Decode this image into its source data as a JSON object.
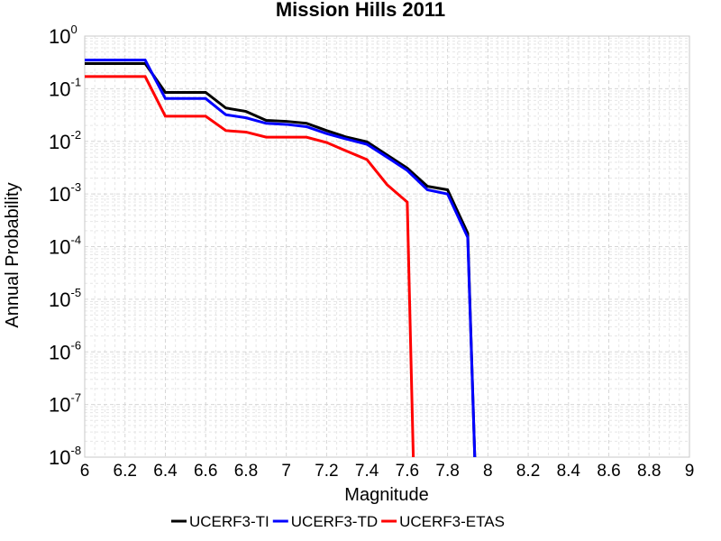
{
  "chart_data": {
    "type": "line",
    "title": "Mission Hills 2011",
    "xlabel": "Magnitude",
    "ylabel": "Annual Probability",
    "xlim": [
      6,
      9
    ],
    "ylim": [
      1e-08,
      1
    ],
    "yscale": "log",
    "grid": true,
    "legend_position": "bottom",
    "x_ticks": [
      "6",
      "6.2",
      "6.4",
      "6.6",
      "6.8",
      "7",
      "7.2",
      "7.4",
      "7.6",
      "7.8",
      "8",
      "8.2",
      "8.4",
      "8.6",
      "8.8",
      "9"
    ],
    "y_tick_base": "10",
    "y_tick_exponents": [
      "0",
      "-1",
      "-2",
      "-3",
      "-4",
      "-5",
      "-6",
      "-7",
      "-8"
    ],
    "series": [
      {
        "name": "UCERF3-TI",
        "color": "#000000",
        "points": [
          [
            6.0,
            0.3
          ],
          [
            6.3,
            0.3
          ],
          [
            6.4,
            0.085
          ],
          [
            6.6,
            0.085
          ],
          [
            6.7,
            0.043
          ],
          [
            6.8,
            0.037
          ],
          [
            6.9,
            0.025
          ],
          [
            7.0,
            0.024
          ],
          [
            7.1,
            0.022
          ],
          [
            7.2,
            0.016
          ],
          [
            7.3,
            0.012
          ],
          [
            7.4,
            0.0098
          ],
          [
            7.5,
            0.0055
          ],
          [
            7.6,
            0.0031
          ],
          [
            7.7,
            0.0014
          ],
          [
            7.8,
            0.0012
          ],
          [
            7.9,
            0.00018
          ],
          [
            7.935,
            1e-08
          ]
        ]
      },
      {
        "name": "UCERF3-TD",
        "color": "#0000ff",
        "points": [
          [
            6.0,
            0.35
          ],
          [
            6.3,
            0.35
          ],
          [
            6.4,
            0.065
          ],
          [
            6.6,
            0.065
          ],
          [
            6.7,
            0.032
          ],
          [
            6.8,
            0.028
          ],
          [
            6.9,
            0.022
          ],
          [
            7.0,
            0.021
          ],
          [
            7.1,
            0.019
          ],
          [
            7.2,
            0.014
          ],
          [
            7.3,
            0.011
          ],
          [
            7.4,
            0.0088
          ],
          [
            7.5,
            0.005
          ],
          [
            7.6,
            0.0028
          ],
          [
            7.7,
            0.0012
          ],
          [
            7.8,
            0.001
          ],
          [
            7.9,
            0.00015
          ],
          [
            7.935,
            1e-08
          ]
        ]
      },
      {
        "name": "UCERF3-ETAS",
        "color": "#ff0000",
        "points": [
          [
            6.0,
            0.17
          ],
          [
            6.3,
            0.17
          ],
          [
            6.4,
            0.03
          ],
          [
            6.6,
            0.03
          ],
          [
            6.7,
            0.016
          ],
          [
            6.8,
            0.015
          ],
          [
            6.9,
            0.012
          ],
          [
            7.0,
            0.012
          ],
          [
            7.1,
            0.012
          ],
          [
            7.2,
            0.0095
          ],
          [
            7.3,
            0.0065
          ],
          [
            7.4,
            0.0045
          ],
          [
            7.5,
            0.0015
          ],
          [
            7.6,
            0.0007
          ],
          [
            7.63,
            1e-08
          ]
        ]
      }
    ]
  }
}
